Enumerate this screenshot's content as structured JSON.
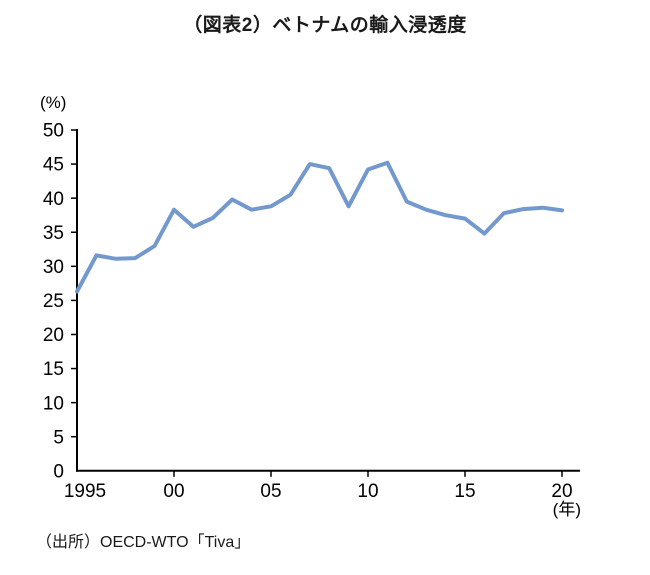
{
  "page": {
    "title": "（図表2）ベトナムの輸入浸透度",
    "source": "（出所）OECD-WTO「Tiva」"
  },
  "chart_data": {
    "type": "line",
    "title": "（図表2）ベトナムの輸入浸透度",
    "y_unit_label": "(%)",
    "x_unit_label": "(年)",
    "x": [
      1995,
      1996,
      1997,
      1998,
      1999,
      2000,
      2001,
      2002,
      2003,
      2004,
      2005,
      2006,
      2007,
      2008,
      2009,
      2010,
      2011,
      2012,
      2013,
      2014,
      2015,
      2016,
      2017,
      2018,
      2019,
      2020
    ],
    "values": [
      26.3,
      31.6,
      31.1,
      31.2,
      33.0,
      38.3,
      35.8,
      37.1,
      39.8,
      38.3,
      38.8,
      40.5,
      45.0,
      44.4,
      38.8,
      44.2,
      45.2,
      39.5,
      38.3,
      37.5,
      37.0,
      34.8,
      37.8,
      38.4,
      38.6,
      38.2
    ],
    "ylim": [
      0,
      50
    ],
    "ytick_step": 5,
    "xticks": [
      {
        "year": 1995,
        "label": "1995"
      },
      {
        "year": 2000,
        "label": "00"
      },
      {
        "year": 2005,
        "label": "05"
      },
      {
        "year": 2010,
        "label": "10"
      },
      {
        "year": 2015,
        "label": "15"
      },
      {
        "year": 2020,
        "label": "20"
      }
    ],
    "line_color": "#7298CD",
    "axis_color": "#000000",
    "grid": false,
    "legend": "none",
    "source": "（出所）OECD-WTO「Tiva」"
  }
}
